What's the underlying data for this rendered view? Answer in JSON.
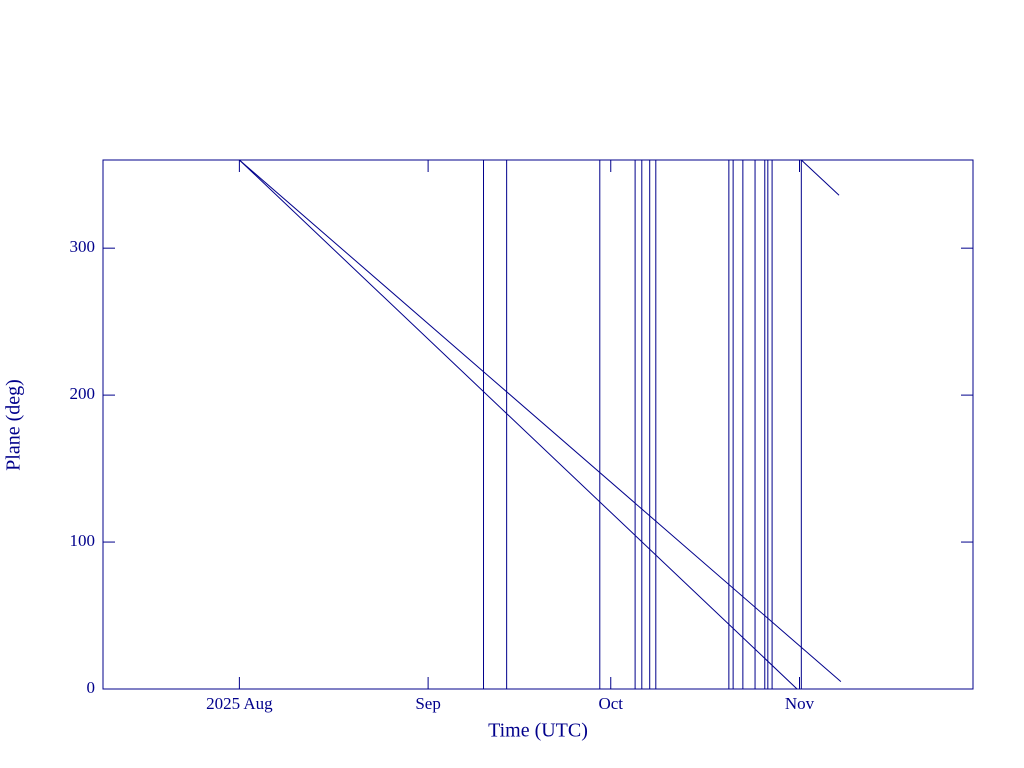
{
  "chart_data": {
    "type": "line",
    "xlabel": "Time (UTC)",
    "ylabel": "Plane (deg)",
    "xlim": [
      190.6,
      333.5
    ],
    "ylim": [
      0,
      360
    ],
    "xticks": [
      {
        "value": 213,
        "label": "2025 Aug"
      },
      {
        "value": 244,
        "label": "Sep"
      },
      {
        "value": 274,
        "label": "Oct"
      },
      {
        "value": 305,
        "label": "Nov"
      }
    ],
    "yticks": [
      0,
      100,
      200,
      300
    ],
    "series": [
      {
        "color": "#00008b",
        "x": [
          213,
          311.8
        ],
        "values": [
          360,
          5
        ]
      },
      {
        "color": "#00008b",
        "x": [
          213,
          304.6,
          304.6,
          305.3,
          311.5
        ],
        "values": [
          360,
          0,
          null,
          360,
          336
        ]
      },
      {
        "color": "#00008b",
        "x": [
          253.1,
          253.1,
          253.1,
          256.9,
          256.9,
          256.9,
          272.2,
          272.2,
          272.2,
          278.0,
          278.0,
          278.0,
          279.1,
          279.1,
          279.1,
          280.4,
          280.4,
          280.4,
          281.4,
          281.4,
          281.4,
          293.4,
          293.4,
          293.4,
          294.1,
          294.1,
          294.1,
          295.7,
          295.7,
          295.7,
          297.7,
          297.7,
          297.7,
          299.3,
          299.3,
          299.3,
          299.8,
          299.8,
          299.8,
          300.5,
          300.5,
          300.5,
          305.3,
          305.3
        ],
        "values": [
          0,
          360,
          null,
          0,
          360,
          null,
          0,
          360,
          null,
          0,
          360,
          null,
          0,
          360,
          null,
          0,
          360,
          null,
          0,
          360,
          null,
          0,
          360,
          null,
          0,
          360,
          null,
          0,
          360,
          null,
          0,
          360,
          null,
          0,
          360,
          null,
          0,
          360,
          null,
          0,
          360,
          null,
          0,
          360
        ]
      }
    ]
  }
}
